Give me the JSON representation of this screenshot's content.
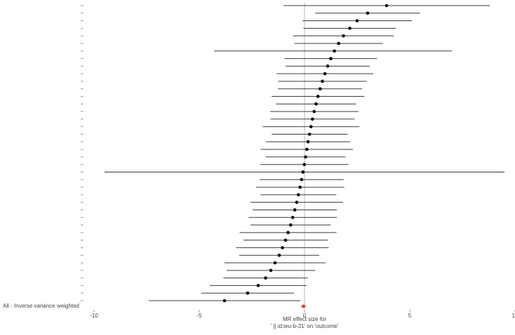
{
  "chart_data": {
    "type": "forest",
    "xlabel": [
      "MR effect size for",
      "' || id:ieu-b-31' on 'outcome'"
    ],
    "xlim": [
      -10.5,
      10
    ],
    "xticks": [
      -10,
      -5,
      0,
      5,
      10
    ],
    "point_color": "#000000",
    "ci_color": "#3a3a3a",
    "summary": {
      "label": "All - Inverse variance weighted",
      "b": -0.05,
      "lo": -0.16,
      "hi": 0.06,
      "color": "#e8412c"
    },
    "snps": {
      "labels": [
        null,
        null,
        null,
        null,
        null,
        null,
        null,
        null,
        null,
        null,
        null,
        null,
        null,
        null,
        null,
        null,
        null,
        null,
        null,
        null,
        null,
        null,
        null,
        null,
        null,
        null,
        null,
        null,
        null,
        null,
        null,
        null,
        null,
        null,
        null,
        null,
        null,
        null,
        null,
        null
      ],
      "b": [
        -3.8,
        -2.7,
        -2.2,
        -1.85,
        -1.6,
        -1.4,
        -1.2,
        -1.05,
        -0.9,
        -0.78,
        -0.66,
        -0.56,
        -0.46,
        -0.37,
        -0.29,
        -0.21,
        -0.14,
        -0.07,
        -0.01,
        0.05,
        0.11,
        0.17,
        0.24,
        0.31,
        0.38,
        0.46,
        0.55,
        0.64,
        0.74,
        0.85,
        0.97,
        1.1,
        1.25,
        1.42,
        1.62,
        1.85,
        2.15,
        2.5,
        3.0,
        3.9
      ],
      "lo": [
        -7.4,
        -4.9,
        -4.5,
        -3.85,
        -3.7,
        -3.8,
        -3.1,
        -3.25,
        -2.9,
        -3.08,
        -2.56,
        -2.66,
        -2.46,
        -2.57,
        -2.09,
        -2.31,
        -2.14,
        -9.5,
        -2.11,
        -1.85,
        -2.09,
        -1.83,
        -1.56,
        -1.99,
        -1.62,
        -1.64,
        -1.35,
        -1.56,
        -1.26,
        -1.25,
        -1.33,
        -0.9,
        -0.95,
        -4.3,
        -0.48,
        -0.55,
        -0.05,
        -0.1,
        0.5,
        -1.0
      ],
      "hi": [
        -0.2,
        -0.5,
        0.1,
        0.15,
        0.5,
        1.0,
        0.7,
        1.15,
        1.1,
        1.52,
        1.24,
        1.54,
        1.54,
        1.83,
        1.51,
        1.89,
        1.86,
        9.5,
        2.09,
        1.95,
        2.31,
        2.17,
        2.04,
        2.61,
        2.38,
        2.56,
        2.45,
        2.84,
        2.74,
        2.95,
        3.27,
        3.1,
        3.45,
        7.0,
        3.72,
        4.25,
        4.35,
        5.1,
        5.5,
        8.8
      ]
    }
  }
}
